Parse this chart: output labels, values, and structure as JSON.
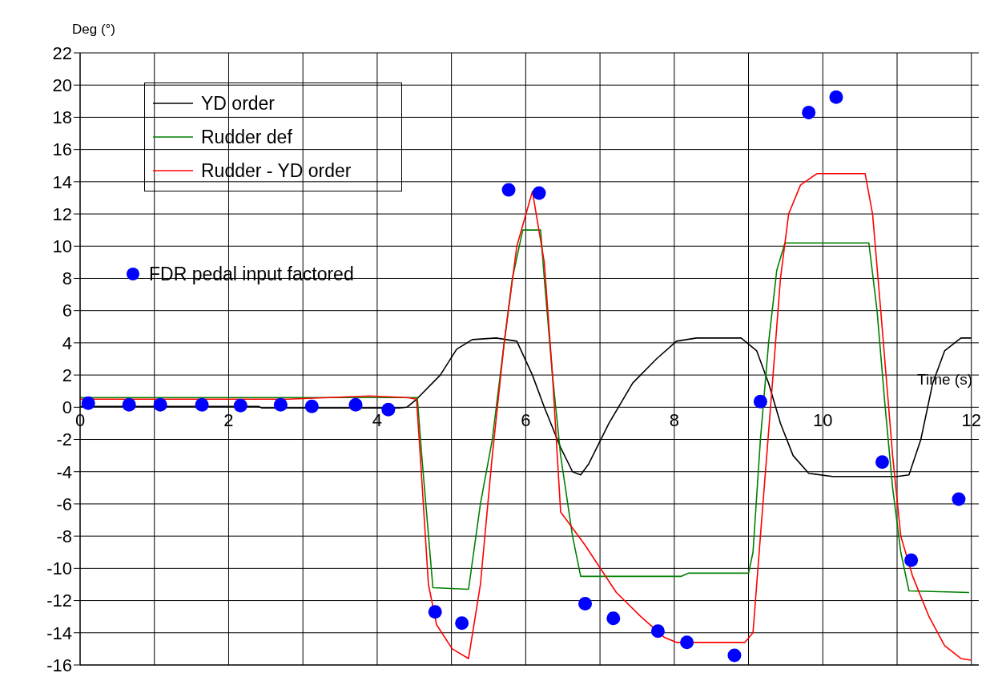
{
  "chart_data": {
    "type": "line",
    "xlabel": "Time (s)",
    "ylabel": "Deg (°)",
    "xlim": [
      0,
      12.1
    ],
    "ylim": [
      -16,
      22
    ],
    "xticks": [
      0,
      {
        "value": 1,
        "label": null
      },
      2,
      {
        "value": 3,
        "label": null
      },
      4,
      {
        "value": 5,
        "label": null
      },
      6,
      {
        "value": 7,
        "label": null
      },
      8,
      {
        "value": 9,
        "label": null
      },
      10,
      {
        "value": 11,
        "label": null
      },
      12
    ],
    "yticks": [
      -16,
      -14,
      -12,
      -10,
      -8,
      -6,
      -4,
      -2,
      0,
      2,
      4,
      6,
      8,
      10,
      12,
      14,
      16,
      18,
      20,
      22
    ],
    "grid": true,
    "legend": "top left",
    "marker": "none",
    "line_style": "solid",
    "series": [
      {
        "name": "YD order",
        "color": "#000000",
        "x": [
          0,
          2.4,
          2.45,
          4.3,
          4.4,
          4.53,
          4.85,
          5.07,
          5.28,
          5.6,
          5.88,
          6.09,
          6.25,
          6.47,
          6.63,
          6.74,
          6.85,
          7.12,
          7.44,
          7.76,
          8.03,
          8.3,
          8.9,
          9.11,
          9.27,
          9.43,
          9.6,
          9.81,
          10.13,
          11,
          11.16,
          11.32,
          11.48,
          11.64,
          11.86,
          12
        ],
        "values": [
          0.05,
          0.05,
          -0.05,
          -0.05,
          0,
          0.5,
          2,
          3.6,
          4.2,
          4.3,
          4.1,
          2,
          0,
          -2.5,
          -4,
          -4.2,
          -3.5,
          -1,
          1.5,
          3,
          4.1,
          4.3,
          4.3,
          3.5,
          1.5,
          -1,
          -3,
          -4.1,
          -4.3,
          -4.3,
          -4.2,
          -2,
          1.5,
          3.5,
          4.3,
          4.3
        ]
      },
      {
        "name": "Rudder def",
        "color": "#008000",
        "x": [
          0,
          4.54,
          4.6,
          4.75,
          5.23,
          5.39,
          5.55,
          5.71,
          5.82,
          5.96,
          6.2,
          6.25,
          6.36,
          6.47,
          6.63,
          6.74,
          8.09,
          8.19,
          9,
          9.06,
          9.16,
          9.27,
          9.38,
          9.49,
          10.62,
          10.73,
          10.84,
          10.94,
          11.05,
          11.16,
          11.97
        ],
        "values": [
          0.6,
          0.6,
          -3,
          -11.2,
          -11.3,
          -6,
          -2,
          4,
          8,
          11,
          11,
          8,
          2,
          -3,
          -8,
          -10.5,
          -10.5,
          -10.3,
          -10.3,
          -9,
          -2,
          4,
          8.5,
          10.2,
          10.2,
          6,
          0,
          -5,
          -9,
          -11.4,
          -11.5
        ]
      },
      {
        "name": "Rudder - YD order",
        "color": "#ff0000",
        "x": [
          0,
          2.8,
          3.9,
          4.4,
          4.53,
          4.58,
          4.69,
          4.8,
          5.01,
          5.23,
          5.39,
          5.55,
          5.71,
          5.88,
          6.09,
          6.25,
          6.36,
          6.47,
          6.79,
          7.22,
          7.55,
          7.87,
          8.03,
          8.95,
          9.06,
          9.16,
          9.33,
          9.43,
          9.54,
          9.7,
          9.92,
          10.57,
          10.67,
          10.78,
          10.94,
          11.05,
          11.21,
          11.43,
          11.64,
          11.86,
          12
        ],
        "values": [
          0.5,
          0.5,
          0.7,
          0.6,
          0.5,
          -3,
          -11,
          -13.5,
          -15,
          -15.6,
          -11,
          -3,
          4,
          10,
          13.4,
          9,
          2,
          -6.5,
          -8.5,
          -11.5,
          -13,
          -14.3,
          -14.6,
          -14.6,
          -14,
          -8,
          2,
          8,
          12,
          13.8,
          14.5,
          14.5,
          12,
          6,
          -3,
          -8,
          -10.5,
          -13,
          -14.8,
          -15.6,
          -15.7
        ]
      },
      {
        "name": "FDR pedal input factored",
        "color": "#0000ff",
        "type": "scatter",
        "marker": "circle",
        "x": [
          0.11,
          0.66,
          1.08,
          1.64,
          2.16,
          2.7,
          3.12,
          3.71,
          4.15,
          4.78,
          5.14,
          5.77,
          6.18,
          6.8,
          7.18,
          7.78,
          8.17,
          8.81,
          9.16,
          9.81,
          10.18,
          10.8,
          11.19,
          11.83
        ],
        "values": [
          0.25,
          0.15,
          0.15,
          0.15,
          0.1,
          0.15,
          0.05,
          0.15,
          -0.15,
          -12.7,
          -13.4,
          13.5,
          13.3,
          -12.2,
          -13.1,
          -13.9,
          -14.6,
          -15.4,
          0.35,
          18.3,
          19.25,
          -3.4,
          -9.5,
          -5.7
        ]
      }
    ]
  }
}
